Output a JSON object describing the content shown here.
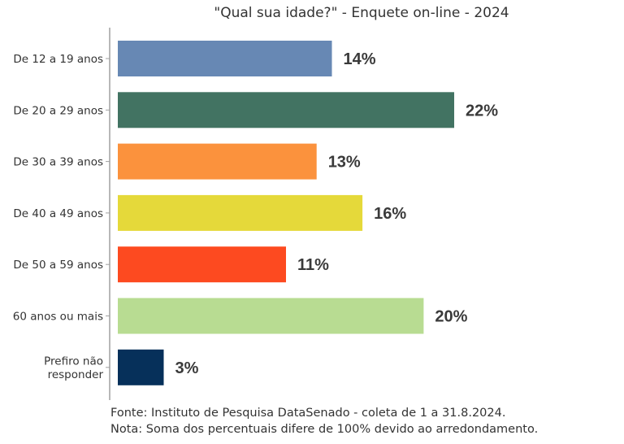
{
  "chart_data": {
    "type": "bar",
    "orientation": "horizontal",
    "title": "\"Qual sua idade?\" - Enquete on-line - 2024",
    "xlabel": "",
    "ylabel": "",
    "categories": [
      "De 12 a 19 anos",
      "De 20 a 29 anos",
      "De 30 a 39 anos",
      "De 40 a 49 anos",
      "De 50 a 59 anos",
      "60 anos ou mais",
      "Prefiro não responder"
    ],
    "category_lines": [
      [
        "De 12 a 19 anos"
      ],
      [
        "De 20 a 29 anos"
      ],
      [
        "De 30 a 39 anos"
      ],
      [
        "De 40 a 49 anos"
      ],
      [
        "De 50 a 59 anos"
      ],
      [
        "60 anos ou mais"
      ],
      [
        "Prefiro não",
        "responder"
      ]
    ],
    "values": [
      14,
      22,
      13,
      16,
      11,
      20,
      3
    ],
    "value_labels": [
      "14%",
      "22%",
      "13%",
      "16%",
      "11%",
      "20%",
      "3%"
    ],
    "colors": [
      "#6788b4",
      "#427362",
      "#fb923d",
      "#e5d93a",
      "#fd4a20",
      "#b8dc92",
      "#06305a"
    ],
    "xlim": [
      0,
      22
    ],
    "grid": false,
    "legend": "none"
  },
  "footer": {
    "source": "Fonte: Instituto de Pesquisa DataSenado - coleta de 1 a 31.8.2024.",
    "note": "Nota: Soma dos percentuais difere de 100% devido ao arredondamento."
  }
}
